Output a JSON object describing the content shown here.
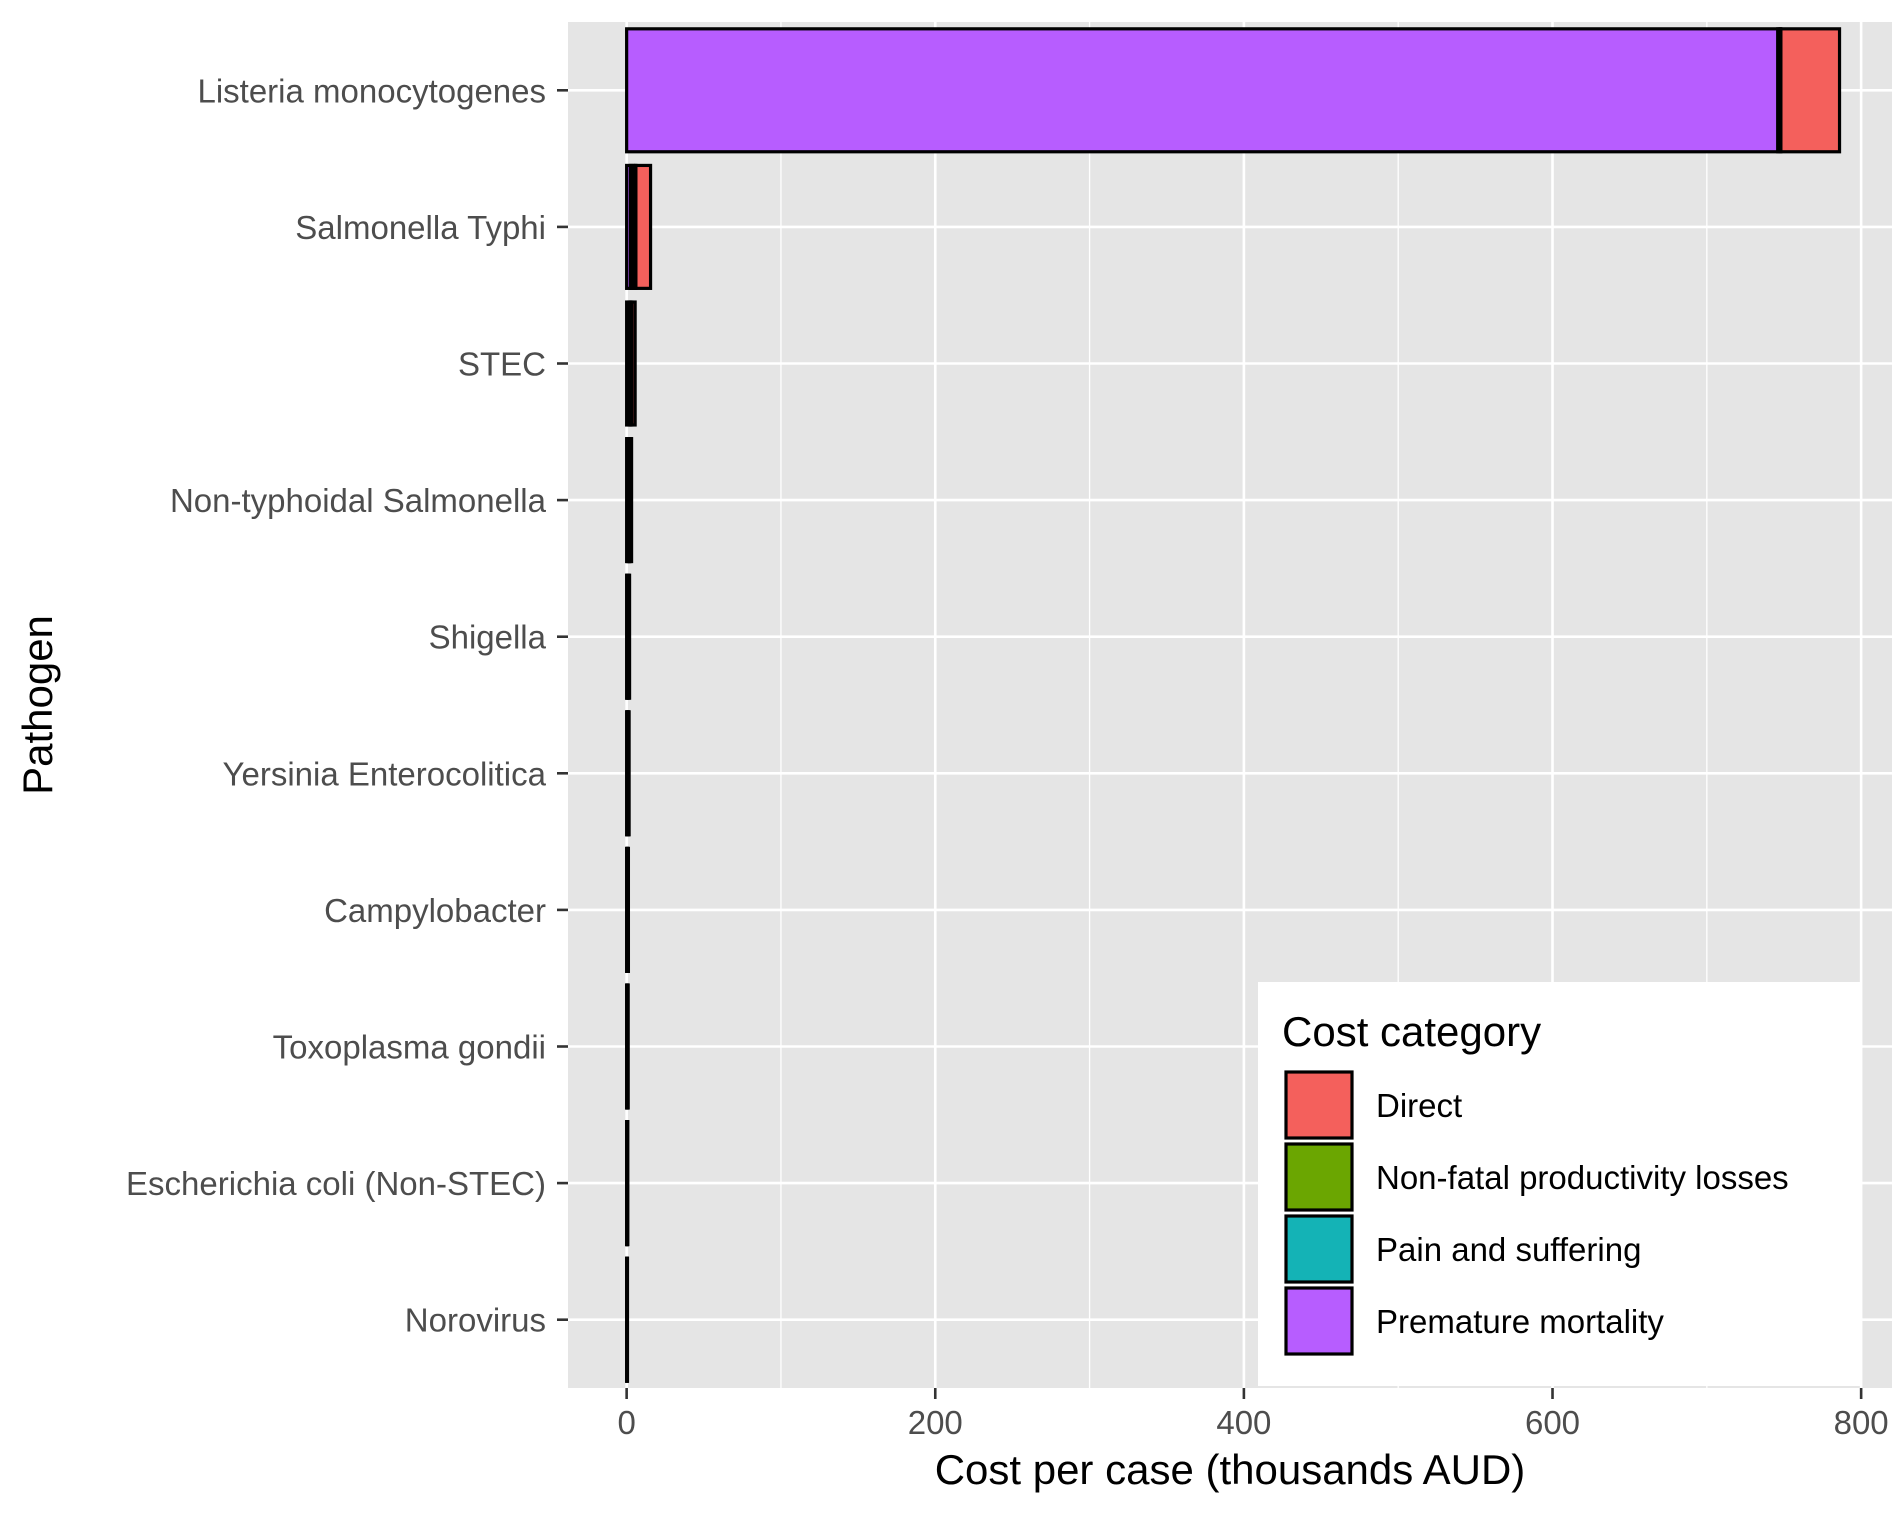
{
  "chart_data": {
    "type": "bar",
    "orientation": "horizontal",
    "stacked": true,
    "title": "",
    "xlabel": "Cost per case (thousands AUD)",
    "ylabel": "Pathogen",
    "xlim": [
      -38,
      820
    ],
    "x_ticks": [
      0,
      200,
      400,
      600,
      800
    ],
    "x_tick_labels": [
      "0",
      "200",
      "400",
      "600",
      "800"
    ],
    "grid": true,
    "categories": [
      "Listeria monocytogenes",
      "Salmonella Typhi",
      "STEC",
      "Non-typhoidal Salmonella",
      "Shigella",
      "Yersinia Enterocolitica",
      "Campylobacter",
      "Toxoplasma gondii",
      "Escherichia coli (Non-STEC)",
      "Norovirus"
    ],
    "series": [
      {
        "name": "Premature mortality",
        "color": "#B75DFF",
        "values": [
          746,
          2.5,
          1.5,
          0.8,
          0.2,
          0.2,
          0.1,
          0.1,
          0.05,
          0.05
        ]
      },
      {
        "name": "Pain and suffering",
        "color": "#14B3B6",
        "values": [
          1.5,
          2.0,
          1.0,
          0.8,
          0.6,
          0.5,
          0.4,
          0.3,
          0.25,
          0.2
        ]
      },
      {
        "name": "Non-fatal productivity losses",
        "color": "#6BA601",
        "values": [
          0.5,
          1.5,
          0.8,
          0.6,
          0.5,
          0.4,
          0.35,
          0.3,
          0.25,
          0.2
        ]
      },
      {
        "name": "Direct",
        "color": "#F4605C",
        "values": [
          38,
          9.5,
          2.2,
          1.0,
          0.6,
          0.5,
          0.3,
          0.3,
          0.2,
          0.1
        ]
      }
    ],
    "legend": {
      "title": "Cost category",
      "position": "bottom-right (inside plot)",
      "entries": [
        {
          "label": "Direct",
          "color": "#F4605C"
        },
        {
          "label": "Non-fatal productivity losses",
          "color": "#6BA601"
        },
        {
          "label": "Pain and suffering",
          "color": "#14B3B6"
        },
        {
          "label": "Premature mortality",
          "color": "#B75DFF"
        }
      ]
    },
    "colors": {
      "panel_background": "#E5E5E5",
      "grid_major": "#FFFFFF",
      "bar_outline": "#000000"
    }
  }
}
